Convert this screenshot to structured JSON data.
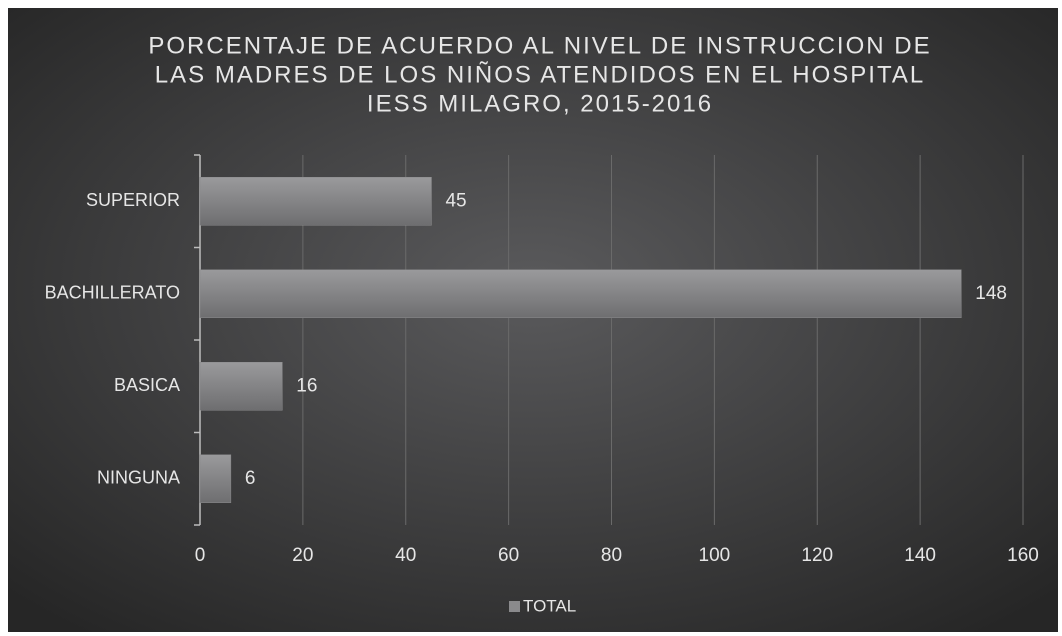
{
  "chart_data": {
    "type": "bar",
    "orientation": "horizontal",
    "title": [
      "PORCENTAJE DE ACUERDO AL NIVEL DE INSTRUCCION DE",
      "LAS MADRES DE LOS NIÑOS ATENDIDOS EN EL HOSPITAL",
      "IESS MILAGRO,  2015-2016"
    ],
    "categories": [
      "SUPERIOR",
      "BACHILLERATO",
      "BASICA",
      "NINGUNA"
    ],
    "series": [
      {
        "name": "TOTAL",
        "color": "#8a8a8c",
        "values": [
          45,
          148,
          16,
          6
        ]
      }
    ],
    "xlim": [
      0,
      160
    ],
    "xticks": [
      0,
      20,
      40,
      60,
      80,
      100,
      120,
      140,
      160
    ],
    "grid": true,
    "legend": "bottom"
  }
}
